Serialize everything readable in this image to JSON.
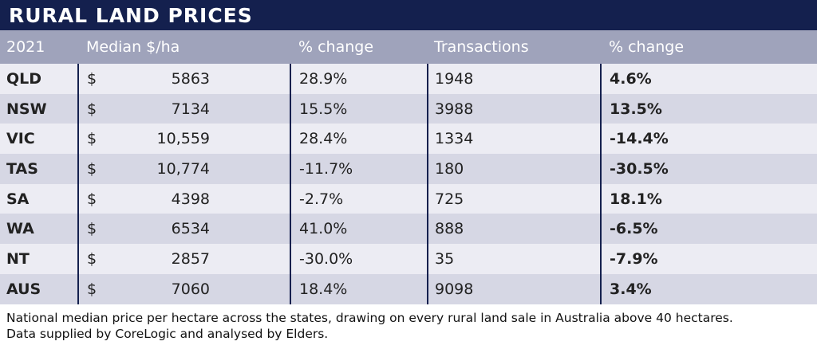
{
  "title": "RURAL LAND PRICES",
  "headers": [
    "2021",
    "Median $/ha",
    "% change",
    "Transactions",
    "% change"
  ],
  "rows": [
    {
      "state": "QLD",
      "currency": "$",
      "median": "5863",
      "median_change": "28.9%",
      "transactions": "1948",
      "transactions_change": "4.6%"
    },
    {
      "state": "NSW",
      "currency": "$",
      "median": "7134",
      "median_change": "15.5%",
      "transactions": "3988",
      "transactions_change": "13.5%"
    },
    {
      "state": "VIC",
      "currency": "$",
      "median": "10,559",
      "median_change": "28.4%",
      "transactions": "1334",
      "transactions_change": "-14.4%"
    },
    {
      "state": "TAS",
      "currency": "$",
      "median": "10,774",
      "median_change": "-11.7%",
      "transactions": "180",
      "transactions_change": "-30.5%"
    },
    {
      "state": "SA",
      "currency": "$",
      "median": "4398",
      "median_change": "-2.7%",
      "transactions": "725",
      "transactions_change": "18.1%"
    },
    {
      "state": "WA",
      "currency": "$",
      "median": "6534",
      "median_change": "41.0%",
      "transactions": "888",
      "transactions_change": "-6.5%"
    },
    {
      "state": "NT",
      "currency": "$",
      "median": "2857",
      "median_change": "-30.0%",
      "transactions": "35",
      "transactions_change": "-7.9%"
    },
    {
      "state": "AUS",
      "currency": "$",
      "median": "7060",
      "median_change": "18.4%",
      "transactions": "9098",
      "transactions_change": "3.4%"
    }
  ],
  "footnote": {
    "line1": "National median price per hectare across the states, drawing on every rural land sale in Australia above 40 hectares.",
    "line2": "Data supplied by CoreLogic and analysed by Elders."
  },
  "colors": {
    "title_bg": "#14204e",
    "header_bg": "#9fa3bb",
    "row_light": "#ececf3",
    "row_dark": "#d6d7e4"
  }
}
